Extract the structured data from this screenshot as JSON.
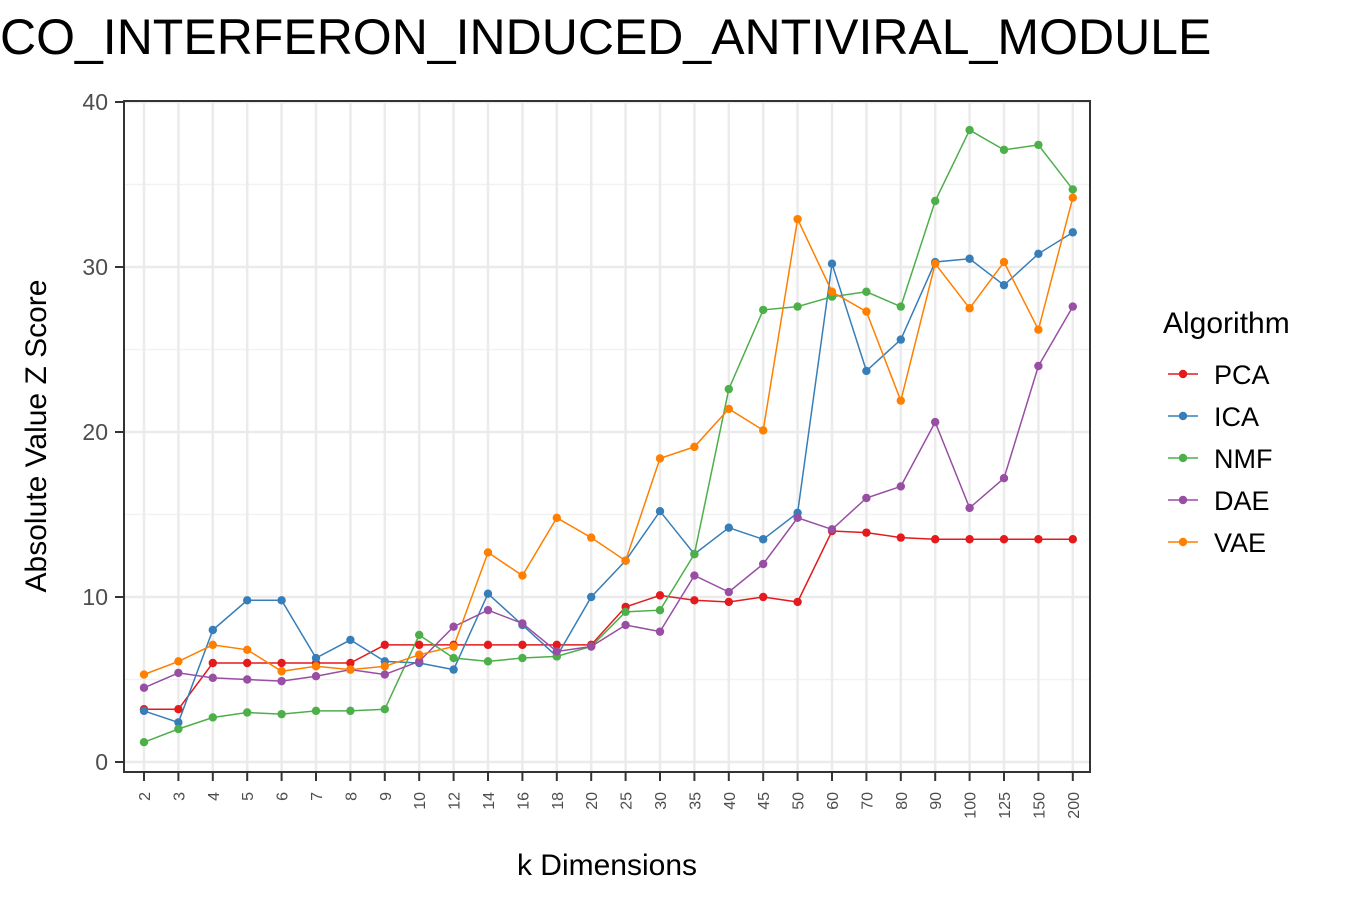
{
  "chart_data": {
    "type": "line",
    "title": "CO_INTERFERON_INDUCED_ANTIVIRAL_MODULE",
    "xlabel": "k Dimensions",
    "ylabel": "Absolute Value Z Score",
    "categories": [
      "2",
      "3",
      "4",
      "5",
      "6",
      "7",
      "8",
      "9",
      "10",
      "12",
      "14",
      "16",
      "18",
      "20",
      "25",
      "30",
      "35",
      "40",
      "45",
      "50",
      "60",
      "70",
      "80",
      "90",
      "100",
      "125",
      "150",
      "200"
    ],
    "ylim": [
      0,
      40
    ],
    "yticks": [
      "0",
      "10",
      "20",
      "30",
      "40"
    ],
    "grid": true,
    "legend_position": "right",
    "legend_title": "Algorithm",
    "series": [
      {
        "name": "PCA",
        "color": "#e41a1c",
        "values": [
          3.2,
          3.2,
          6.0,
          6.0,
          6.0,
          6.0,
          6.0,
          7.1,
          7.1,
          7.1,
          7.1,
          7.1,
          7.1,
          7.1,
          9.4,
          10.1,
          9.8,
          9.7,
          10.0,
          9.7,
          14.0,
          13.9,
          13.6,
          13.5,
          13.5,
          13.5,
          13.5,
          13.5
        ]
      },
      {
        "name": "ICA",
        "color": "#377eb8",
        "values": [
          3.1,
          2.4,
          8.0,
          9.8,
          9.8,
          6.3,
          7.4,
          6.1,
          6.0,
          5.6,
          10.2,
          8.3,
          6.4,
          10.0,
          12.2,
          15.2,
          12.6,
          14.2,
          13.5,
          15.1,
          30.2,
          23.7,
          25.6,
          30.3,
          30.5,
          28.9,
          30.8,
          32.1
        ]
      },
      {
        "name": "NMF",
        "color": "#4daf4a",
        "values": [
          1.2,
          2.0,
          2.7,
          3.0,
          2.9,
          3.1,
          3.1,
          3.2,
          7.7,
          6.3,
          6.1,
          6.3,
          6.4,
          7.0,
          9.1,
          9.2,
          12.6,
          22.6,
          27.4,
          27.6,
          28.2,
          28.5,
          27.6,
          34.0,
          38.3,
          37.1,
          37.4,
          34.7
        ]
      },
      {
        "name": "DAE",
        "color": "#984ea3",
        "values": [
          4.5,
          5.4,
          5.1,
          5.0,
          4.9,
          5.2,
          5.6,
          5.3,
          6.1,
          8.2,
          9.2,
          8.4,
          6.7,
          7.0,
          8.3,
          7.9,
          11.3,
          10.3,
          12.0,
          14.8,
          14.1,
          16.0,
          16.7,
          20.6,
          15.4,
          17.2,
          24.0,
          27.6
        ]
      },
      {
        "name": "VAE",
        "color": "#ff7f00",
        "values": [
          5.3,
          6.1,
          7.1,
          6.8,
          5.5,
          5.8,
          5.6,
          5.8,
          6.5,
          7.0,
          12.7,
          11.3,
          14.8,
          13.6,
          12.2,
          18.4,
          19.1,
          21.4,
          20.1,
          32.9,
          28.5,
          27.3,
          21.9,
          30.2,
          27.5,
          30.3,
          26.2,
          34.2
        ]
      }
    ]
  }
}
